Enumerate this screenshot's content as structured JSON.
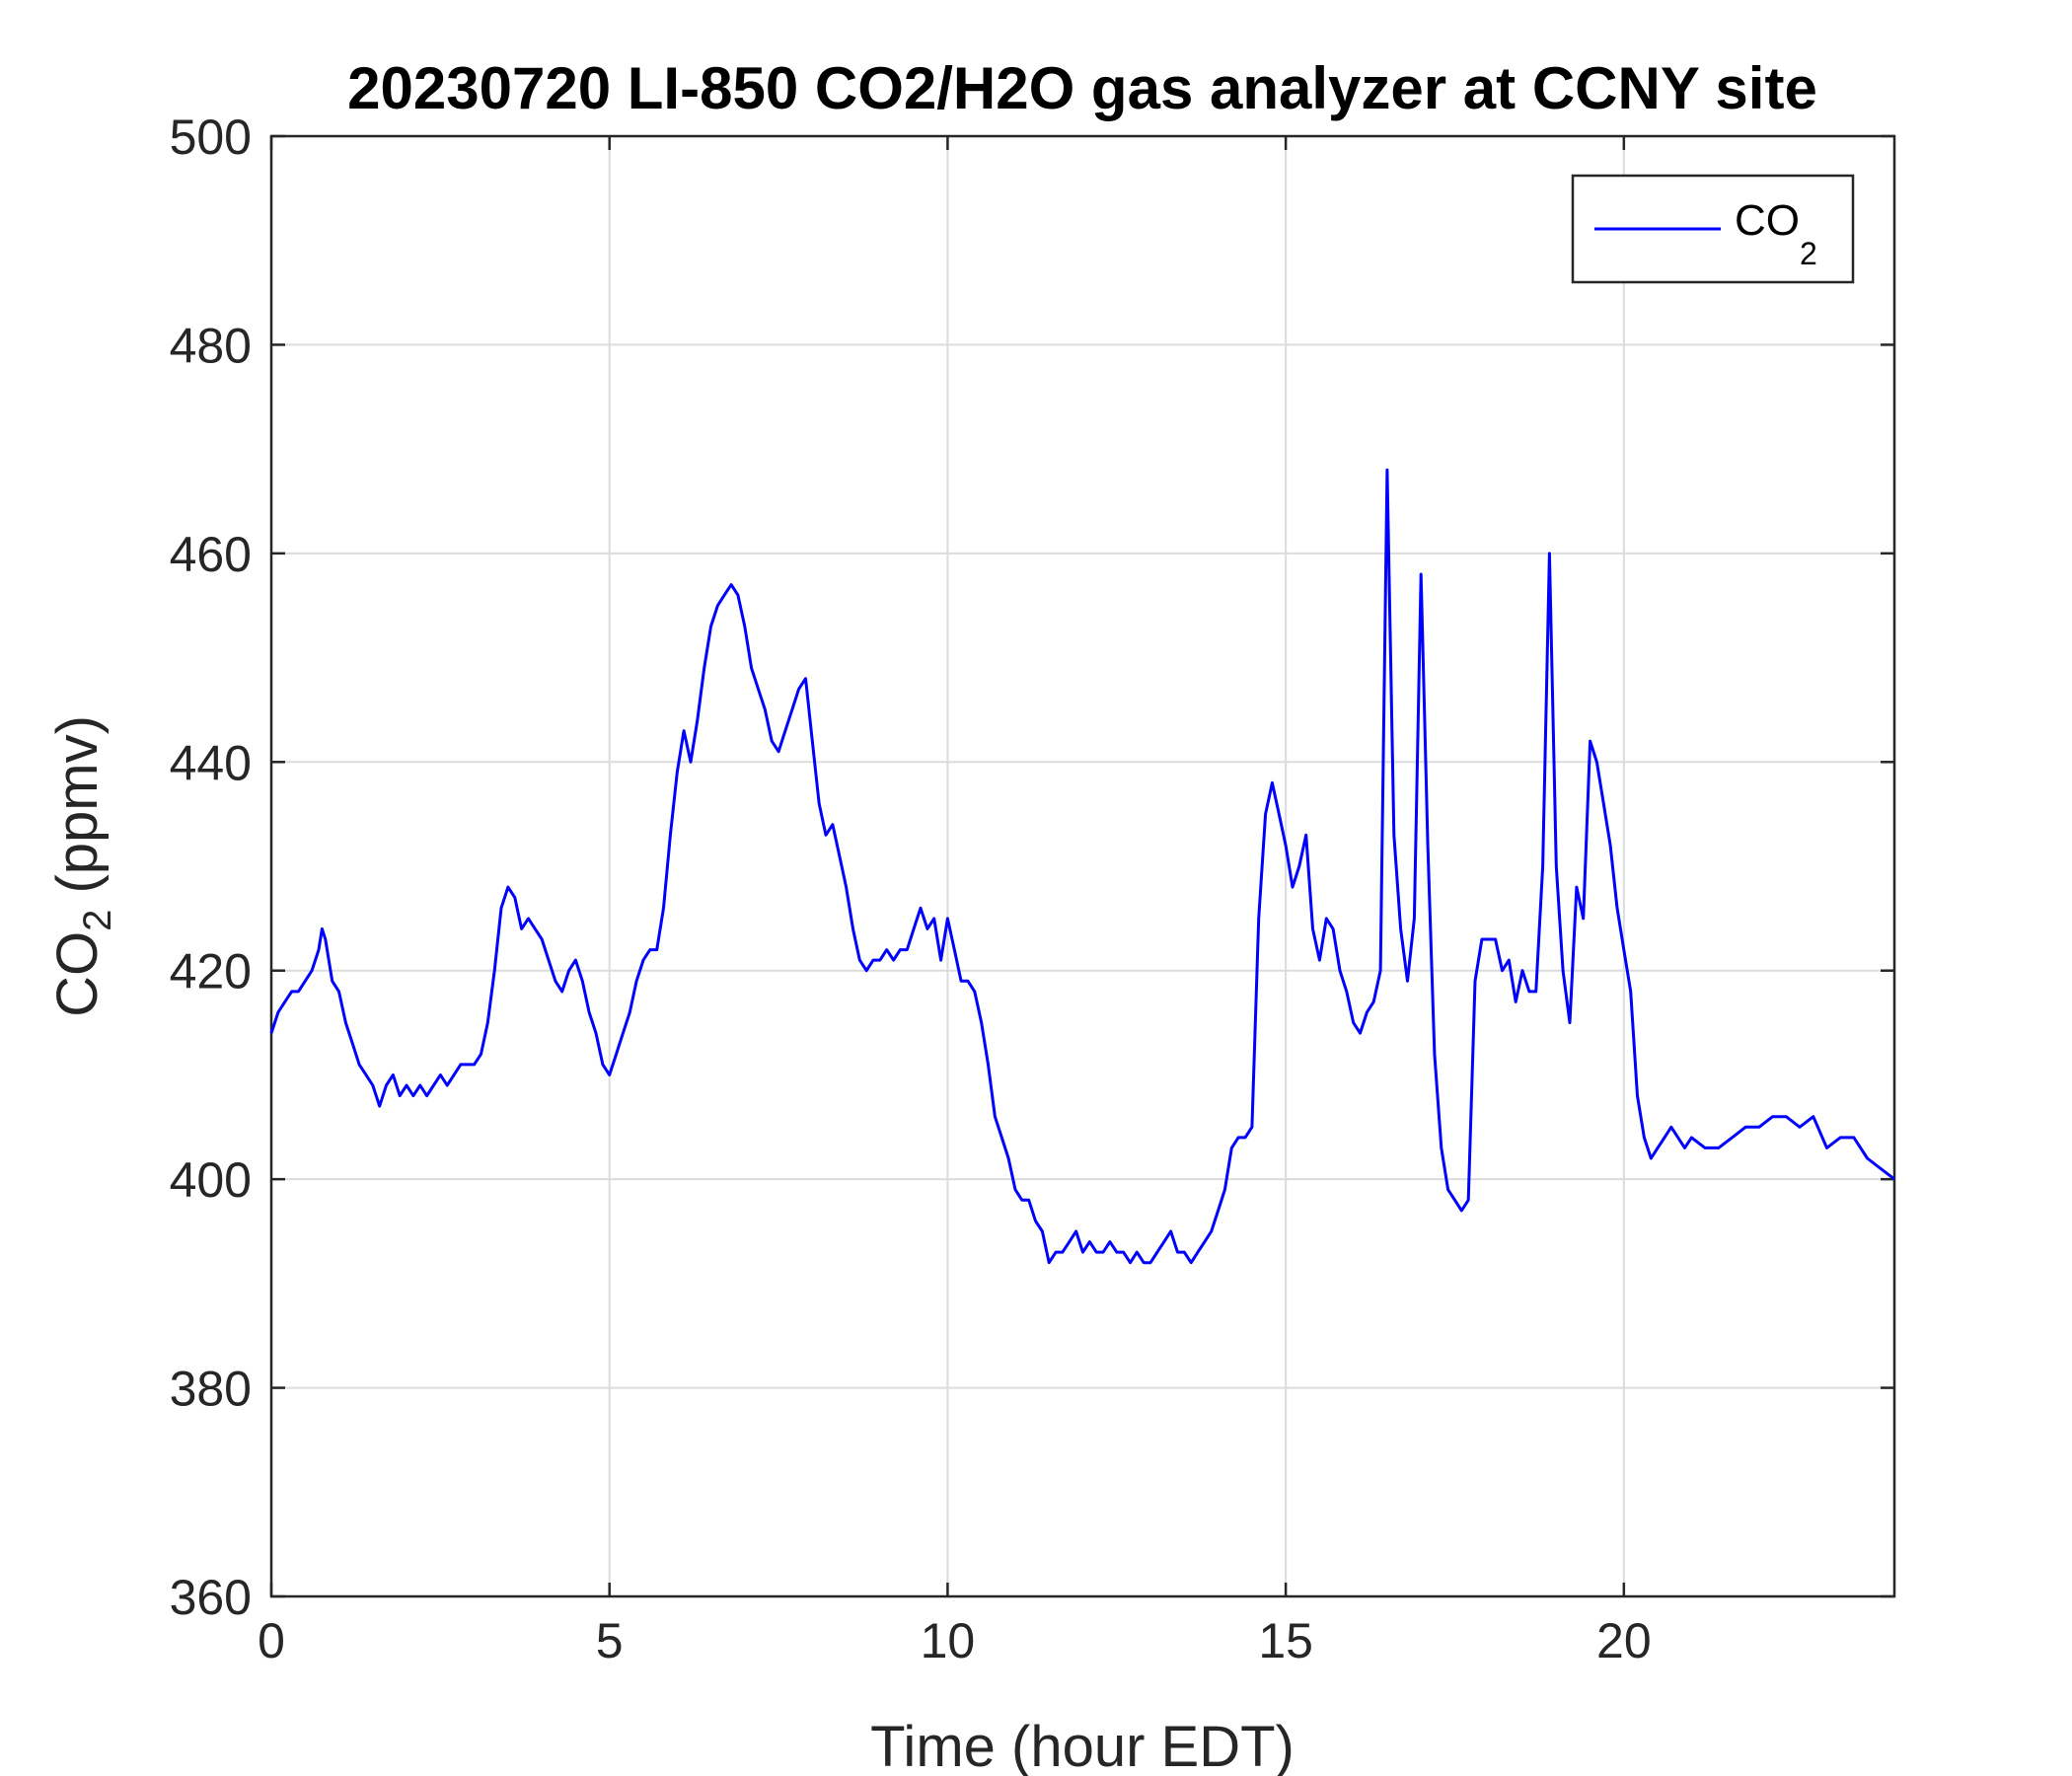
{
  "chart_data": {
    "type": "line",
    "title": "20230720 LI-850 CO2/H2O gas analyzer at CCNY site",
    "xlabel": "Time (hour EDT)",
    "ylabel_main": "CO",
    "ylabel_sub": "2",
    "ylabel_tail": " (ppmv)",
    "xlim": [
      0,
      24
    ],
    "ylim": [
      360,
      500
    ],
    "xticks": [
      0,
      5,
      10,
      15,
      20
    ],
    "yticks": [
      360,
      380,
      400,
      420,
      440,
      460,
      480,
      500
    ],
    "grid": true,
    "legend_position": "top-right",
    "series": [
      {
        "name": "CO2",
        "legend_main": "CO",
        "legend_sub": "2",
        "color": "#0000ff",
        "x": [
          0,
          0.1,
          0.2,
          0.3,
          0.4,
          0.5,
          0.6,
          0.7,
          0.75,
          0.8,
          0.9,
          1.0,
          1.1,
          1.2,
          1.3,
          1.4,
          1.5,
          1.6,
          1.7,
          1.8,
          1.9,
          2.0,
          2.1,
          2.2,
          2.3,
          2.4,
          2.5,
          2.6,
          2.7,
          2.8,
          2.9,
          3.0,
          3.1,
          3.2,
          3.3,
          3.4,
          3.5,
          3.6,
          3.7,
          3.8,
          3.9,
          4.0,
          4.1,
          4.2,
          4.3,
          4.4,
          4.5,
          4.6,
          4.7,
          4.8,
          4.9,
          5.0,
          5.1,
          5.2,
          5.3,
          5.4,
          5.5,
          5.6,
          5.7,
          5.8,
          5.9,
          6.0,
          6.1,
          6.2,
          6.3,
          6.4,
          6.5,
          6.6,
          6.7,
          6.8,
          6.9,
          7.0,
          7.1,
          7.2,
          7.3,
          7.4,
          7.5,
          7.6,
          7.7,
          7.8,
          7.9,
          8.0,
          8.1,
          8.2,
          8.3,
          8.4,
          8.5,
          8.6,
          8.7,
          8.8,
          8.9,
          9.0,
          9.1,
          9.2,
          9.3,
          9.4,
          9.5,
          9.6,
          9.7,
          9.8,
          9.9,
          10.0,
          10.1,
          10.2,
          10.3,
          10.4,
          10.5,
          10.6,
          10.7,
          10.8,
          10.9,
          11.0,
          11.1,
          11.2,
          11.3,
          11.4,
          11.5,
          11.6,
          11.7,
          11.8,
          11.9,
          12.0,
          12.1,
          12.2,
          12.3,
          12.4,
          12.5,
          12.6,
          12.7,
          12.8,
          12.9,
          13.0,
          13.1,
          13.2,
          13.3,
          13.4,
          13.5,
          13.6,
          13.7,
          13.8,
          13.9,
          14.0,
          14.1,
          14.2,
          14.3,
          14.4,
          14.5,
          14.6,
          14.7,
          14.8,
          14.9,
          15.0,
          15.1,
          15.2,
          15.3,
          15.4,
          15.5,
          15.6,
          15.7,
          15.8,
          15.9,
          16.0,
          16.1,
          16.2,
          16.3,
          16.4,
          16.5,
          16.6,
          16.7,
          16.8,
          16.9,
          17.0,
          17.1,
          17.2,
          17.3,
          17.4,
          17.5,
          17.6,
          17.7,
          17.8,
          17.9,
          18.0,
          18.1,
          18.2,
          18.3,
          18.4,
          18.5,
          18.6,
          18.7,
          18.8,
          18.9,
          19.0,
          19.1,
          19.2,
          19.3,
          19.4,
          19.5,
          19.6,
          19.7,
          19.8,
          19.9,
          20.0,
          20.1,
          20.2,
          20.3,
          20.4,
          20.5,
          20.6,
          20.7,
          20.8,
          20.9,
          21.0,
          21.2,
          21.4,
          21.6,
          21.8,
          22.0,
          22.2,
          22.4,
          22.6,
          22.8,
          23.0,
          23.2,
          23.4,
          23.6,
          23.8,
          24.0
        ],
        "values": [
          414,
          416,
          417,
          418,
          418,
          419,
          420,
          422,
          424,
          423,
          419,
          418,
          415,
          413,
          411,
          410,
          409,
          407,
          409,
          410,
          408,
          409,
          408,
          409,
          408,
          409,
          410,
          409,
          410,
          411,
          411,
          411,
          412,
          415,
          420,
          426,
          428,
          427,
          424,
          425,
          424,
          423,
          421,
          419,
          418,
          420,
          421,
          419,
          416,
          414,
          411,
          410,
          412,
          414,
          416,
          419,
          421,
          422,
          422,
          426,
          433,
          439,
          443,
          440,
          444,
          449,
          453,
          455,
          456,
          457,
          456,
          453,
          449,
          447,
          445,
          442,
          441,
          443,
          445,
          447,
          448,
          442,
          436,
          433,
          434,
          431,
          428,
          424,
          421,
          420,
          421,
          421,
          422,
          421,
          422,
          422,
          424,
          426,
          424,
          425,
          421,
          425,
          422,
          419,
          419,
          418,
          415,
          411,
          406,
          404,
          402,
          399,
          398,
          398,
          396,
          395,
          392,
          393,
          393,
          394,
          395,
          393,
          394,
          393,
          393,
          394,
          393,
          393,
          392,
          393,
          392,
          392,
          393,
          394,
          395,
          393,
          393,
          392,
          393,
          394,
          395,
          397,
          399,
          403,
          404,
          404,
          405,
          425,
          435,
          438,
          435,
          432,
          428,
          430,
          433,
          424,
          421,
          425,
          424,
          420,
          418,
          415,
          414,
          416,
          417,
          420,
          468,
          433,
          424,
          419,
          425,
          458,
          432,
          412,
          403,
          399,
          398,
          397,
          398,
          419,
          423,
          423,
          423,
          420,
          421,
          417,
          420,
          418,
          418,
          430,
          460,
          430,
          420,
          415,
          428,
          425,
          442,
          440,
          436,
          432,
          426,
          422,
          418,
          408,
          404,
          402,
          403,
          404,
          405,
          404,
          403,
          404,
          403,
          403,
          404,
          405,
          405,
          406,
          406,
          405,
          406,
          403,
          404,
          404,
          402,
          401,
          400
        ]
      }
    ]
  }
}
